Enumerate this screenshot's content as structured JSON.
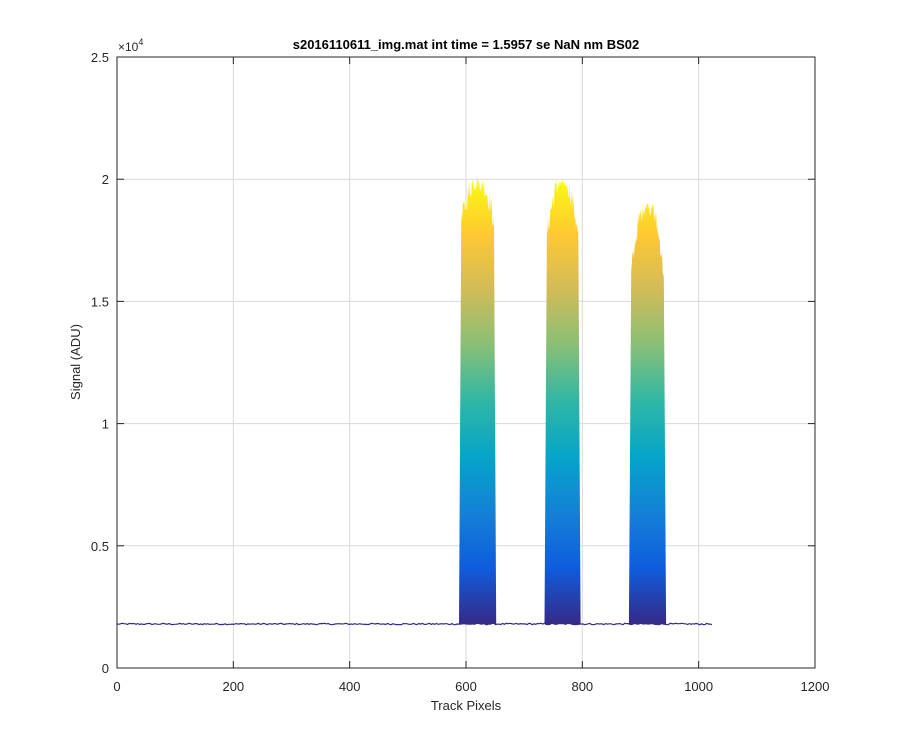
{
  "chart_data": {
    "type": "area",
    "title": "s2016110611_img.mat int time = 1.5957 se  NaN nm BS02",
    "xlabel": "Track Pixels",
    "ylabel": "Signal (ADU)",
    "xlim": [
      0,
      1200
    ],
    "ylim": [
      0,
      25000
    ],
    "x_ticks": [
      "0",
      "200",
      "400",
      "600",
      "800",
      "1000",
      "1200"
    ],
    "y_ticks": [
      "0",
      "0.5",
      "1",
      "1.5",
      "2",
      "2.5"
    ],
    "y_exponent_base": "×10",
    "y_exponent_power": "4",
    "grid": true,
    "colormap": [
      "#352a87",
      "#0f5cdd",
      "#1481d6",
      "#06a4ca",
      "#2eb7a4",
      "#87bf77",
      "#d1bb59",
      "#fec832",
      "#f9fb0e"
    ],
    "baseline": 1800,
    "x_end": 1023,
    "peaks": [
      {
        "x_start": 588,
        "x_end": 652,
        "peak_value": 20000,
        "shoulder_value": 18500
      },
      {
        "x_start": 735,
        "x_end": 797,
        "peak_value": 20000,
        "shoulder_value": 17000
      },
      {
        "x_start": 880,
        "x_end": 944,
        "peak_value": 19000,
        "shoulder_value": 14500
      }
    ]
  }
}
